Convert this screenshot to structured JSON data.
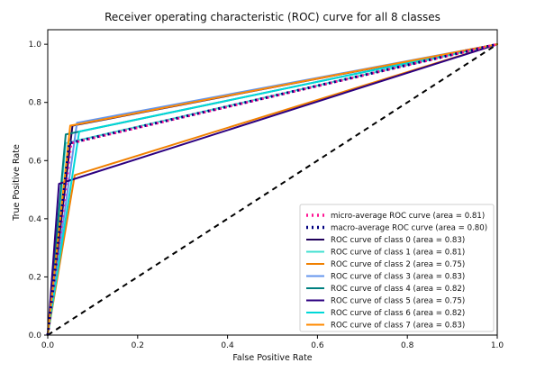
{
  "chart_data": {
    "type": "line",
    "title": "Receiver operating characteristic (ROC) curve for all 8 classes",
    "xlabel": "False Positive Rate",
    "ylabel": "True Positive Rate",
    "xlim": [
      0.0,
      1.0
    ],
    "ylim": [
      0.0,
      1.05
    ],
    "xticks": [
      "0.0",
      "0.2",
      "0.4",
      "0.6",
      "0.8",
      "1.0"
    ],
    "yticks": [
      "0.0",
      "0.2",
      "0.4",
      "0.6",
      "0.8",
      "1.0"
    ],
    "grid": false,
    "legend_position": "lower-right",
    "diagonal": {
      "x": [
        0,
        1
      ],
      "y": [
        0,
        1
      ],
      "color": "#000000",
      "style": "dashed"
    },
    "series": [
      {
        "name": "micro-average ROC curve (area = 0.81)",
        "color": "#ff1493",
        "style": "dotted",
        "x": [
          0,
          0.052,
          1
        ],
        "y": [
          0,
          0.66,
          1
        ]
      },
      {
        "name": "macro-average ROC curve (area = 0.80)",
        "color": "#000080",
        "style": "dotted",
        "x": [
          0,
          0.048,
          1
        ],
        "y": [
          0,
          0.66,
          1
        ]
      },
      {
        "name": "ROC curve of class 0 (area = 0.83)",
        "color": "#1f005a",
        "style": "solid",
        "x": [
          0,
          0.055,
          1
        ],
        "y": [
          0,
          0.72,
          1
        ]
      },
      {
        "name": "ROC curve of class 1 (area = 0.81)",
        "color": "#40e0d0",
        "style": "solid",
        "x": [
          0,
          0.04,
          1
        ],
        "y": [
          0,
          0.66,
          1
        ]
      },
      {
        "name": "ROC curve of class 2 (area = 0.75)",
        "color": "#f08000",
        "style": "solid",
        "x": [
          0,
          0.06,
          1
        ],
        "y": [
          0,
          0.55,
          1
        ]
      },
      {
        "name": "ROC curve of class 3 (area = 0.83)",
        "color": "#6495ed",
        "style": "solid",
        "x": [
          0,
          0.065,
          1
        ],
        "y": [
          0,
          0.73,
          1
        ]
      },
      {
        "name": "ROC curve of class 4 (area = 0.82)",
        "color": "#008080",
        "style": "solid",
        "x": [
          0,
          0.04,
          1
        ],
        "y": [
          0,
          0.69,
          1
        ]
      },
      {
        "name": "ROC curve of class 5 (area = 0.75)",
        "color": "#2c0080",
        "style": "solid",
        "x": [
          0,
          0.025,
          1
        ],
        "y": [
          0,
          0.52,
          1
        ]
      },
      {
        "name": "ROC curve of class 6 (area = 0.82)",
        "color": "#00d8d8",
        "style": "solid",
        "x": [
          0,
          0.07,
          1
        ],
        "y": [
          0,
          0.7,
          1
        ]
      },
      {
        "name": "ROC curve of class 7 (area = 0.83)",
        "color": "#ff8a00",
        "style": "solid",
        "x": [
          0,
          0.05,
          1
        ],
        "y": [
          0,
          0.72,
          1
        ]
      }
    ]
  }
}
